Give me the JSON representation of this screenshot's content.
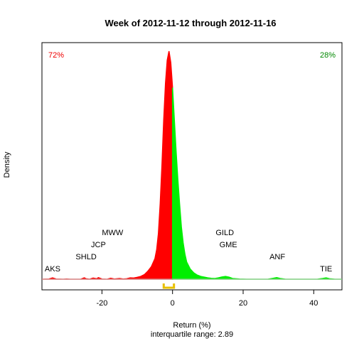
{
  "chart_data": {
    "type": "area",
    "title": "Week of 2012-11-12 through 2012-11-16",
    "xlabel": "Return (%)",
    "ylabel": "Density",
    "subtitle": "interquartile range: 2.89",
    "xlim": [
      -37,
      48
    ],
    "xticks": [
      -20,
      0,
      20,
      40
    ],
    "negative_share": "72%",
    "positive_share": "28%",
    "colors": {
      "negative": "#ff0000",
      "positive": "#00ee00",
      "negative_label": "#ee0000",
      "positive_label": "#008800",
      "iqr": "#e8c000"
    },
    "density": [
      [
        -37,
        0
      ],
      [
        -35,
        0.001
      ],
      [
        -34,
        0.006
      ],
      [
        -33,
        0.001
      ],
      [
        -31,
        0
      ],
      [
        -30,
        0.001
      ],
      [
        -29,
        0
      ],
      [
        -26,
        0
      ],
      [
        -25,
        0.006
      ],
      [
        -24.5,
        0.002
      ],
      [
        -23.5,
        0
      ],
      [
        -22.5,
        0.005
      ],
      [
        -21.5,
        0.002
      ],
      [
        -21,
        0.007
      ],
      [
        -20,
        0.001
      ],
      [
        -18.5,
        0
      ],
      [
        -17.5,
        0.004
      ],
      [
        -16.5,
        0.001
      ],
      [
        -15,
        0.003
      ],
      [
        -14,
        0.001
      ],
      [
        -13,
        0.002
      ],
      [
        -12,
        0.006
      ],
      [
        -11,
        0.005
      ],
      [
        -10,
        0.008
      ],
      [
        -9,
        0.012
      ],
      [
        -8,
        0.02
      ],
      [
        -7,
        0.035
      ],
      [
        -6,
        0.055
      ],
      [
        -5,
        0.09
      ],
      [
        -4.5,
        0.13
      ],
      [
        -4,
        0.2
      ],
      [
        -3.5,
        0.33
      ],
      [
        -3,
        0.5
      ],
      [
        -2.5,
        0.7
      ],
      [
        -2,
        0.86
      ],
      [
        -1.5,
        0.96
      ],
      [
        -1,
        1.0
      ],
      [
        -0.5,
        0.95
      ],
      [
        0,
        0.84
      ],
      [
        0.5,
        0.7
      ],
      [
        1,
        0.56
      ],
      [
        1.5,
        0.44
      ],
      [
        2,
        0.33
      ],
      [
        2.5,
        0.23
      ],
      [
        3,
        0.16
      ],
      [
        3.5,
        0.11
      ],
      [
        4,
        0.075
      ],
      [
        5,
        0.045
      ],
      [
        6,
        0.028
      ],
      [
        7,
        0.018
      ],
      [
        8,
        0.012
      ],
      [
        9,
        0.009
      ],
      [
        10,
        0.006
      ],
      [
        11,
        0.004
      ],
      [
        12,
        0.003
      ],
      [
        13,
        0.006
      ],
      [
        14,
        0.01
      ],
      [
        15,
        0.012
      ],
      [
        16,
        0.009
      ],
      [
        17,
        0.003
      ],
      [
        19,
        0.001
      ],
      [
        21,
        0
      ],
      [
        27,
        0
      ],
      [
        28.5,
        0.004
      ],
      [
        29.5,
        0.007
      ],
      [
        30.5,
        0.003
      ],
      [
        32,
        0
      ],
      [
        41,
        0
      ],
      [
        42.5,
        0.003
      ],
      [
        43.5,
        0.006
      ],
      [
        44.5,
        0.002
      ],
      [
        46,
        0
      ],
      [
        48,
        0
      ]
    ],
    "iqr_range": [
      -2.5,
      0.4
    ],
    "annotations": [
      {
        "label": "AKS",
        "x": -34,
        "row": 0
      },
      {
        "label": "SHLD",
        "x": -24.5,
        "row": 1
      },
      {
        "label": "JCP",
        "x": -21,
        "row": 2
      },
      {
        "label": "MWW",
        "x": -17,
        "row": 3
      },
      {
        "label": "GILD",
        "x": 14.8,
        "row": 3
      },
      {
        "label": "GME",
        "x": 15.8,
        "row": 2
      },
      {
        "label": "ANF",
        "x": 29.7,
        "row": 1
      },
      {
        "label": "TIE",
        "x": 43.5,
        "row": 0
      }
    ]
  }
}
